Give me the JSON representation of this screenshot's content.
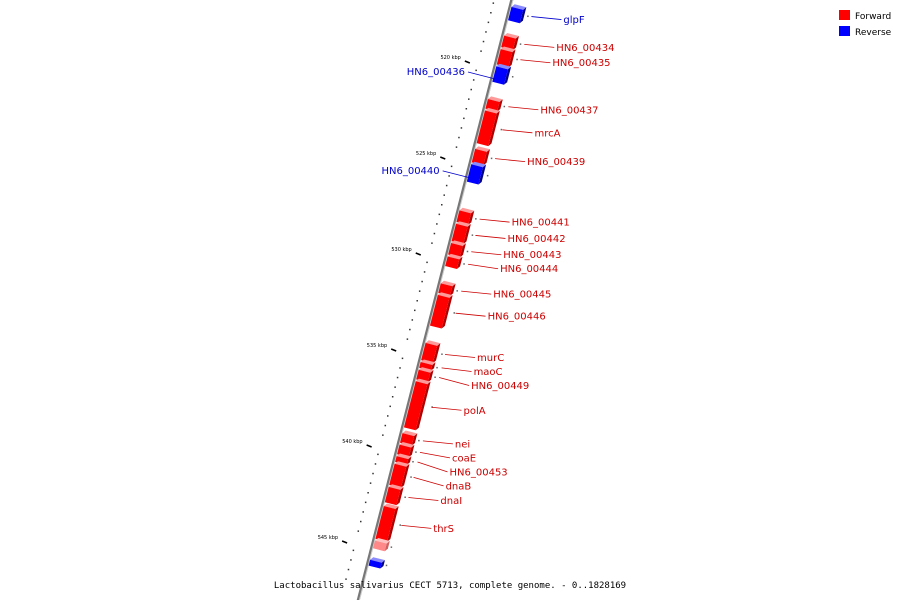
{
  "caption": "Lactobacillus salivarius CECT 5713, complete genome. - 0..1828169",
  "legend": [
    {
      "name": "Forward",
      "color": "#ff0000"
    },
    {
      "name": "Reverse",
      "color": "#0000ff"
    }
  ],
  "colors": {
    "forward": "#ff0000",
    "reverse": "#0000ff",
    "backbone": "#888888",
    "partial": "#ff8888"
  },
  "scale_ticks": [
    {
      "label": "520 kbp",
      "kbp": 520
    },
    {
      "label": "525 kbp",
      "kbp": 525
    },
    {
      "label": "530 kbp",
      "kbp": 530
    },
    {
      "label": "535 kbp",
      "kbp": 535
    },
    {
      "label": "540 kbp",
      "kbp": 540
    },
    {
      "label": "545 kbp",
      "kbp": 545
    }
  ],
  "genes": [
    {
      "name": "glpF",
      "strand": "reverse",
      "start_kbp": 516.9,
      "end_kbp": 517.6
    },
    {
      "name": "HN6_00434",
      "strand": "forward",
      "start_kbp": 518.4,
      "end_kbp": 519.0
    },
    {
      "name": "HN6_00435",
      "strand": "forward",
      "start_kbp": 519.1,
      "end_kbp": 519.9
    },
    {
      "name": "HN6_00436",
      "strand": "reverse",
      "start_kbp": 520.0,
      "end_kbp": 520.8
    },
    {
      "name": "HN6_00437",
      "strand": "forward",
      "start_kbp": 521.7,
      "end_kbp": 522.2
    },
    {
      "name": "mrcA",
      "strand": "forward",
      "start_kbp": 522.3,
      "end_kbp": 524.0
    },
    {
      "name": "HN6_00439",
      "strand": "forward",
      "start_kbp": 524.3,
      "end_kbp": 525.0
    },
    {
      "name": "HN6_00440",
      "strand": "reverse",
      "start_kbp": 525.1,
      "end_kbp": 526.0
    },
    {
      "name": "HN6_00441",
      "strand": "forward",
      "start_kbp": 527.5,
      "end_kbp": 528.1
    },
    {
      "name": "HN6_00442",
      "strand": "forward",
      "start_kbp": 528.2,
      "end_kbp": 529.1
    },
    {
      "name": "HN6_00443",
      "strand": "forward",
      "start_kbp": 529.2,
      "end_kbp": 529.8
    },
    {
      "name": "HN6_00444",
      "strand": "forward",
      "start_kbp": 529.9,
      "end_kbp": 530.4
    },
    {
      "name": "HN6_00445",
      "strand": "forward",
      "start_kbp": 531.3,
      "end_kbp": 531.8
    },
    {
      "name": "HN6_00446",
      "strand": "forward",
      "start_kbp": 531.9,
      "end_kbp": 533.5
    },
    {
      "name": "murC",
      "strand": "forward",
      "start_kbp": 534.4,
      "end_kbp": 535.3
    },
    {
      "name": "maoC",
      "strand": "forward",
      "start_kbp": 535.4,
      "end_kbp": 535.7
    },
    {
      "name": "HN6_00449",
      "strand": "forward",
      "start_kbp": 535.8,
      "end_kbp": 536.3
    },
    {
      "name": "polA",
      "strand": "forward",
      "start_kbp": 536.4,
      "end_kbp": 538.8
    },
    {
      "name": "nei",
      "strand": "forward",
      "start_kbp": 539.1,
      "end_kbp": 539.6
    },
    {
      "name": "coaE",
      "strand": "forward",
      "start_kbp": 539.7,
      "end_kbp": 540.2
    },
    {
      "name": "HN6_00453",
      "strand": "forward",
      "start_kbp": 540.3,
      "end_kbp": 540.6
    },
    {
      "name": "dnaB",
      "strand": "forward",
      "start_kbp": 540.7,
      "end_kbp": 541.8
    },
    {
      "name": "dnaI",
      "strand": "forward",
      "start_kbp": 541.9,
      "end_kbp": 542.7
    },
    {
      "name": "thrS",
      "strand": "forward",
      "start_kbp": 542.9,
      "end_kbp": 544.6
    },
    {
      "name": "",
      "strand": "partial",
      "start_kbp": 544.7,
      "end_kbp": 545.1
    },
    {
      "name": "",
      "strand": "reverse",
      "start_kbp": 545.7,
      "end_kbp": 546.0
    }
  ]
}
